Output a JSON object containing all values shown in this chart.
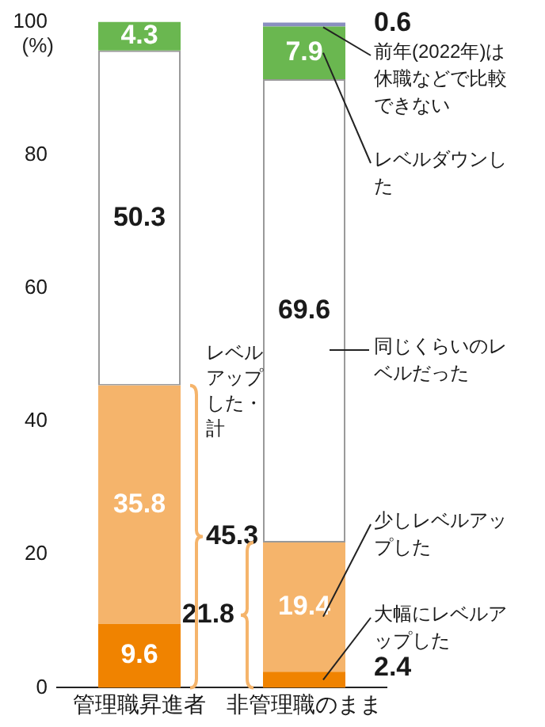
{
  "chart_data": {
    "type": "bar",
    "stacked": true,
    "ylabel": "(%)",
    "categories": [
      "管理職昇進者",
      "非管理職のまま"
    ],
    "series": [
      {
        "name": "大幅にレベルアップした",
        "color": "#f08300",
        "values": [
          9.6,
          2.4
        ]
      },
      {
        "name": "少しレベルアップした",
        "color": "#f5b46b",
        "values": [
          35.8,
          19.4
        ]
      },
      {
        "name": "同じくらいのレベルだった",
        "color": "#ffffff",
        "values": [
          50.3,
          69.6
        ]
      },
      {
        "name": "レベルダウンした",
        "color": "#6ab750",
        "values": [
          4.3,
          7.9
        ]
      },
      {
        "name": "前年(2022年)は休職などで比較できない",
        "color": "#8a8fc0",
        "values": [
          null,
          0.6
        ]
      }
    ],
    "ylim": [
      0,
      100
    ],
    "yticks": [
      0,
      20,
      40,
      60,
      80,
      100
    ],
    "grid": false,
    "legend": false,
    "data_labels": true,
    "annotations": [
      "45.3",
      "21.8",
      "レベルアップした・計"
    ]
  }
}
